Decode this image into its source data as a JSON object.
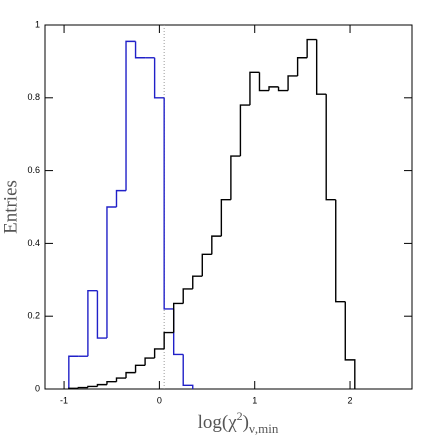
{
  "chart_data": {
    "type": "histogram",
    "xlabel": {
      "base": "log(χ",
      "sup": "2",
      "close": ")",
      "sub": "ν,min"
    },
    "ylabel": "Entries",
    "xlim": [
      -1.2,
      2.65
    ],
    "ylim": [
      0,
      1
    ],
    "xticks": [
      -1,
      0,
      1,
      2
    ],
    "yticks": [
      0,
      0.2,
      0.4,
      0.6,
      0.8,
      1
    ],
    "reference_line": 0.05,
    "series": [
      {
        "color": "#2020c8",
        "bins": [
          -0.95,
          -0.85,
          -0.75,
          -0.65,
          -0.55,
          -0.45,
          -0.35,
          -0.25,
          -0.15,
          -0.05,
          0.05,
          0.15,
          0.25,
          0.35
        ],
        "values": [
          0.09,
          0.09,
          0.27,
          0.14,
          0.5,
          0.545,
          0.955,
          0.91,
          0.91,
          0.8,
          0.22,
          0.095,
          0.01
        ]
      },
      {
        "color": "#000000",
        "bins": [
          -0.95,
          -0.85,
          -0.75,
          -0.65,
          -0.55,
          -0.45,
          -0.35,
          -0.25,
          -0.15,
          -0.05,
          0.05,
          0.15,
          0.25,
          0.35,
          0.45,
          0.55,
          0.65,
          0.75,
          0.85,
          0.95,
          1.05,
          1.15,
          1.25,
          1.35,
          1.45,
          1.55,
          1.65,
          1.75,
          1.85,
          1.95,
          2.05
        ],
        "values": [
          0.002,
          0.004,
          0.007,
          0.012,
          0.02,
          0.03,
          0.045,
          0.065,
          0.085,
          0.11,
          0.155,
          0.235,
          0.275,
          0.31,
          0.37,
          0.42,
          0.52,
          0.64,
          0.78,
          0.87,
          0.82,
          0.83,
          0.82,
          0.86,
          0.91,
          0.96,
          0.81,
          0.52,
          0.24,
          0.08
        ]
      }
    ]
  }
}
